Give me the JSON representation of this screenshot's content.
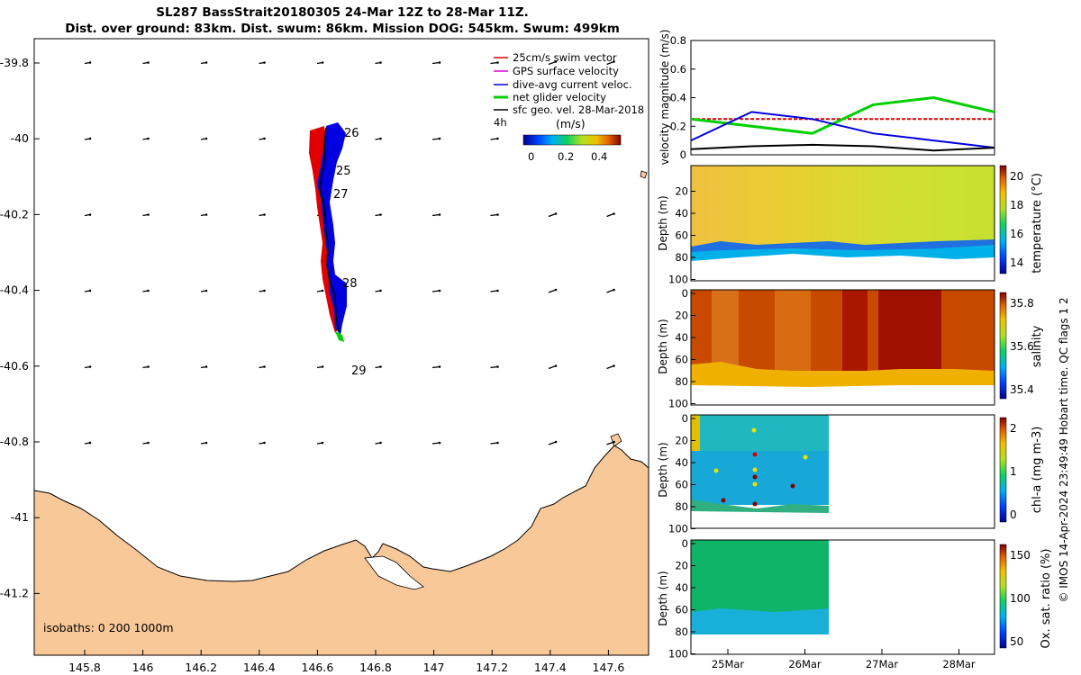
{
  "title_line1": "SL287 BassStrait20180305 24-Mar 12Z to 28-Mar 11Z.",
  "title_line2": "Dist. over ground: 83km. Dist. swum: 86km. Mission DOG: 545km. Swum: 499km",
  "map": {
    "lon_ticks": [
      "145.8",
      "146",
      "146.2",
      "146.4",
      "146.6",
      "146.8",
      "147",
      "147.2",
      "147.4",
      "147.6"
    ],
    "lat_ticks": [
      "-39.8",
      "-40",
      "-40.2",
      "-40.4",
      "-40.6",
      "-40.8",
      "-41",
      "-41.2"
    ],
    "isobaths": "isobaths: 0   200  1000m",
    "day_labels": [
      "26",
      "25",
      "27",
      "28",
      "29"
    ],
    "legend": {
      "items": [
        {
          "label": "25cm/s swim vector",
          "color": "#e00000"
        },
        {
          "label": "GPS surface velocity",
          "color": "#e000e0"
        },
        {
          "label": "dive-avg current veloc.",
          "color": "#0000e0"
        },
        {
          "label": "net glider velocity",
          "color": "#00d000"
        },
        {
          "label": "sfc geo. vel. 28-Mar-2018",
          "color": "#000000"
        }
      ],
      "time_tag": "4h",
      "colorbar_unit": "(m/s)",
      "colorbar_ticks": [
        "0",
        "0.2",
        "0.4"
      ]
    },
    "colors": {
      "land": "#f9c899",
      "swim": "#e00000",
      "current": "#0000e0",
      "net": "#00d000"
    }
  },
  "panels": {
    "velocity": {
      "ylabel": "velocity magnitude (m/s)",
      "yticks": [
        "0",
        "0.2",
        "0.4",
        "0.6",
        "0.8"
      ]
    },
    "temperature": {
      "ylabel": "Depth (m)",
      "cbar_label": "temperature (°C)",
      "cbar_ticks": [
        "14",
        "16",
        "18",
        "20"
      ]
    },
    "salinity": {
      "ylabel": "Depth (m)",
      "cbar_label": "salinity",
      "cbar_ticks": [
        "35.4",
        "35.6",
        "35.8"
      ]
    },
    "chla": {
      "ylabel": "Depth (m)",
      "cbar_label": "chl-a (mg m-3)",
      "cbar_ticks": [
        "0",
        "1",
        "2"
      ]
    },
    "oxygen": {
      "ylabel": "Depth (m)",
      "cbar_label": "Ox. sat. ratio (%)",
      "cbar_ticks": [
        "50",
        "100",
        "150"
      ]
    },
    "depth_ticks": [
      "20",
      "40",
      "60",
      "80",
      "100"
    ],
    "depth_ticks_top": [
      "0",
      "20",
      "40",
      "60",
      "80",
      "100"
    ],
    "time_ticks": [
      "25Mar",
      "26Mar",
      "27Mar",
      "28Mar"
    ]
  },
  "footer": "© IMOS 14-Apr-2024 23:49:49 Hobart time. QC flags 1  2",
  "chart_data": {
    "type": "line",
    "title": "velocity magnitude (m/s)",
    "x": [
      "24-Mar 12Z",
      "25-Mar",
      "26-Mar",
      "27-Mar",
      "28-Mar",
      "28-Mar 11Z"
    ],
    "ylim": [
      0,
      0.8
    ],
    "series": [
      {
        "name": "25cm/s swim vector",
        "color": "#e00000",
        "values": [
          0.25,
          0.25,
          0.25,
          0.25,
          0.25,
          0.25
        ]
      },
      {
        "name": "net glider velocity",
        "color": "#00d000",
        "values": [
          0.25,
          0.2,
          0.15,
          0.35,
          0.4,
          0.3
        ]
      },
      {
        "name": "dive-avg current veloc.",
        "color": "#0000e0",
        "values": [
          0.1,
          0.3,
          0.25,
          0.15,
          0.1,
          0.05
        ]
      },
      {
        "name": "sfc geo. vel.",
        "color": "#000000",
        "values": [
          0.04,
          0.06,
          0.07,
          0.06,
          0.03,
          0.05
        ]
      }
    ]
  }
}
